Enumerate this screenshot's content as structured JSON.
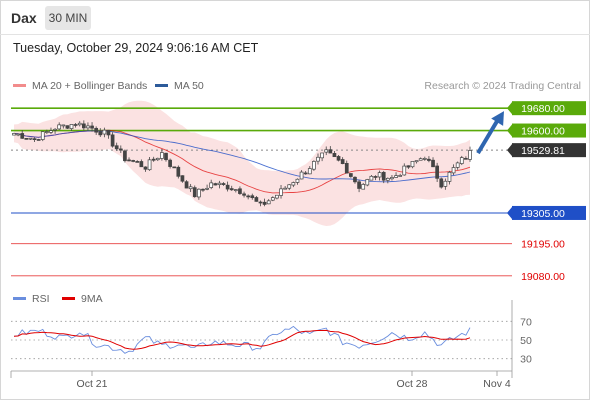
{
  "header": {
    "title": "Dax",
    "interval": "30 MIN",
    "timestamp": "Tuesday, October 29, 2024 9:06:16 AM CET"
  },
  "legend": {
    "main": [
      {
        "name": "MA 20 + Bollinger Bands",
        "color": "#f28c8c"
      },
      {
        "name": "MA 50",
        "color": "#2d5b9a"
      }
    ],
    "rsi": [
      {
        "name": "RSI",
        "color": "#6a8ede"
      },
      {
        "name": "9MA",
        "color": "#e00000"
      }
    ]
  },
  "copyright": "Research © 2024 Trading Central",
  "colors": {
    "resistance": "#5aaa0a",
    "pivot": "#1f4fc7",
    "support": "#e00000",
    "candle": "#444444",
    "bollinger_fill": "#fbe2e2",
    "arrow": "#2f66b0"
  },
  "chart_data": [
    {
      "type": "line",
      "subtype": "candlestick",
      "series": [
        {
          "name": "MA 20 + Bollinger Bands"
        },
        {
          "name": "MA 50"
        }
      ],
      "ylim": [
        19040,
        19720
      ],
      "last_price": 19529.81,
      "levels": [
        {
          "label": "19680.00",
          "value": 19680.0,
          "kind": "resistance"
        },
        {
          "label": "19600.00",
          "value": 19600.0,
          "kind": "resistance"
        },
        {
          "label": "19529.81",
          "value": 19529.81,
          "kind": "price"
        },
        {
          "label": "19305.00",
          "value": 19305.0,
          "kind": "pivot"
        },
        {
          "label": "19195.00",
          "value": 19195.0,
          "kind": "support"
        },
        {
          "label": "19080.00",
          "value": 19080.0,
          "kind": "support"
        }
      ],
      "projection": {
        "from": 19530,
        "to": 19680
      },
      "keypoints": [
        {
          "i": 0,
          "price": 19590
        },
        {
          "i": 5,
          "price": 19570
        },
        {
          "i": 10,
          "price": 19610
        },
        {
          "i": 15,
          "price": 19625
        },
        {
          "i": 18,
          "price": 19615
        },
        {
          "i": 22,
          "price": 19590
        },
        {
          "i": 27,
          "price": 19500
        },
        {
          "i": 32,
          "price": 19470
        },
        {
          "i": 36,
          "price": 19520
        },
        {
          "i": 40,
          "price": 19440
        },
        {
          "i": 44,
          "price": 19370
        },
        {
          "i": 48,
          "price": 19410
        },
        {
          "i": 52,
          "price": 19400
        },
        {
          "i": 56,
          "price": 19380
        },
        {
          "i": 60,
          "price": 19330
        },
        {
          "i": 64,
          "price": 19370
        },
        {
          "i": 68,
          "price": 19420
        },
        {
          "i": 72,
          "price": 19470
        },
        {
          "i": 76,
          "price": 19520
        },
        {
          "i": 80,
          "price": 19480
        },
        {
          "i": 84,
          "price": 19400
        },
        {
          "i": 88,
          "price": 19440
        },
        {
          "i": 92,
          "price": 19430
        },
        {
          "i": 96,
          "price": 19470
        },
        {
          "i": 100,
          "price": 19510
        },
        {
          "i": 104,
          "price": 19410
        },
        {
          "i": 108,
          "price": 19480
        },
        {
          "i": 111,
          "price": 19520
        }
      ]
    },
    {
      "type": "line",
      "series": [
        {
          "name": "RSI"
        },
        {
          "name": "9MA"
        }
      ],
      "ylim": [
        20,
        80
      ],
      "yticks": [
        70,
        50,
        30
      ],
      "xticks": [
        "Oct 21",
        "Oct 28",
        "Nov 4"
      ],
      "rsi_keypoints": [
        {
          "i": 0,
          "v": 56
        },
        {
          "i": 6,
          "v": 60
        },
        {
          "i": 12,
          "v": 52
        },
        {
          "i": 16,
          "v": 60
        },
        {
          "i": 20,
          "v": 46
        },
        {
          "i": 24,
          "v": 42
        },
        {
          "i": 28,
          "v": 38
        },
        {
          "i": 32,
          "v": 52
        },
        {
          "i": 36,
          "v": 44
        },
        {
          "i": 40,
          "v": 46
        },
        {
          "i": 44,
          "v": 40
        },
        {
          "i": 48,
          "v": 48
        },
        {
          "i": 52,
          "v": 46
        },
        {
          "i": 56,
          "v": 44
        },
        {
          "i": 60,
          "v": 42
        },
        {
          "i": 64,
          "v": 58
        },
        {
          "i": 68,
          "v": 62
        },
        {
          "i": 72,
          "v": 55
        },
        {
          "i": 76,
          "v": 62
        },
        {
          "i": 80,
          "v": 48
        },
        {
          "i": 84,
          "v": 44
        },
        {
          "i": 88,
          "v": 50
        },
        {
          "i": 92,
          "v": 58
        },
        {
          "i": 96,
          "v": 52
        },
        {
          "i": 100,
          "v": 58
        },
        {
          "i": 104,
          "v": 44
        },
        {
          "i": 108,
          "v": 54
        },
        {
          "i": 111,
          "v": 60
        }
      ]
    }
  ]
}
